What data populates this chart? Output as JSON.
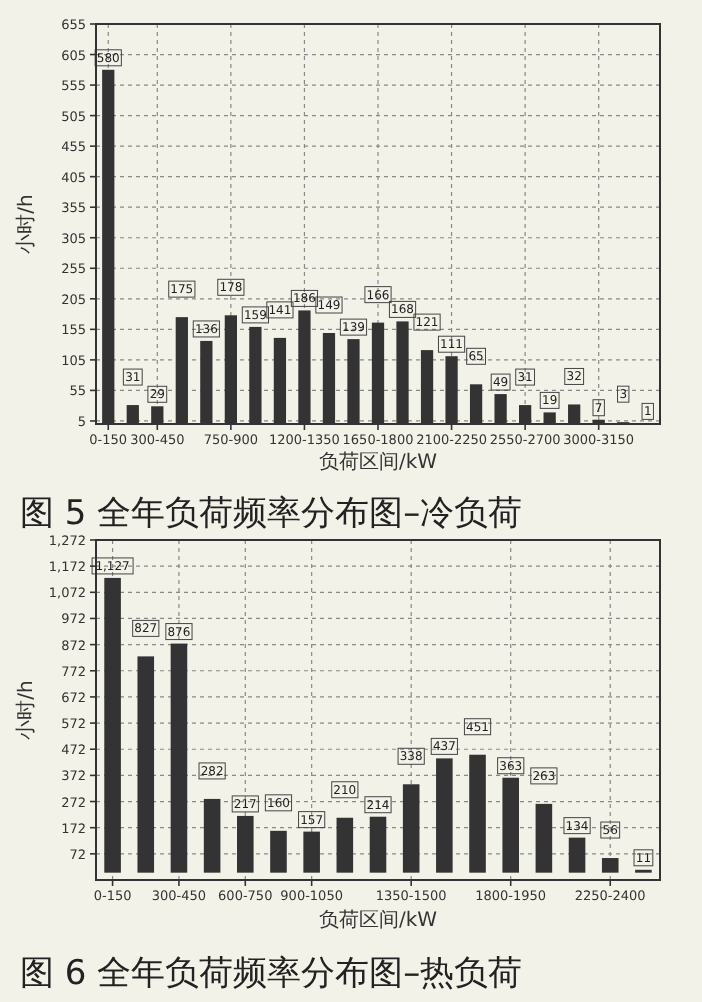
{
  "chart_data": [
    {
      "type": "bar",
      "title": "图 5  全年负荷频率分布图–冷负荷",
      "xlabel": "负荷区间/kW",
      "ylabel": "小时/h",
      "categories": [
        "0-150",
        null,
        "300-450",
        null,
        null,
        "750-900",
        null,
        null,
        "1200-1350",
        null,
        null,
        "1650-1800",
        null,
        null,
        "2100-2250",
        null,
        null,
        "2550-2700",
        null,
        null,
        "3000-3150",
        null,
        null
      ],
      "values": [
        580,
        31,
        29,
        175,
        136,
        178,
        159,
        141,
        186,
        149,
        139,
        166,
        168,
        121,
        111,
        65,
        49,
        31,
        19,
        32,
        7,
        3,
        1
      ],
      "color": "#333333",
      "ylim": [
        0,
        655
      ],
      "yticks": [
        5,
        55,
        105,
        155,
        205,
        255,
        305,
        355,
        405,
        455,
        505,
        555,
        605,
        655
      ],
      "grid": true,
      "data_labels": true
    },
    {
      "type": "bar",
      "title": "图 6  全年负荷频率分布图–热负荷",
      "xlabel": "负荷区间/kW",
      "ylabel": "小时/h",
      "categories": [
        "0-150",
        null,
        "300-450",
        null,
        "600-750",
        null,
        "900-1050",
        null,
        null,
        "1350-1500",
        null,
        null,
        "1800-1950",
        null,
        null,
        "2250-2400",
        null
      ],
      "values": [
        1127,
        827,
        876,
        282,
        217,
        160,
        157,
        210,
        214,
        338,
        437,
        451,
        363,
        263,
        134,
        56,
        11
      ],
      "value_labels": [
        "1,127",
        "827",
        "876",
        "282",
        "217",
        "160",
        "157",
        "210",
        "214",
        "338",
        "437",
        "451",
        "363",
        "263",
        "134",
        "56",
        "11"
      ],
      "color": "#333333",
      "ylim": [
        -28,
        1272
      ],
      "yticks": [
        72,
        172,
        272,
        372,
        472,
        572,
        672,
        772,
        872,
        972,
        {
          "value": 1072,
          "label": "1,072"
        },
        {
          "value": 1172,
          "label": "1,172"
        },
        {
          "value": 1272,
          "label": "1,272"
        }
      ],
      "grid": true
    }
  ]
}
